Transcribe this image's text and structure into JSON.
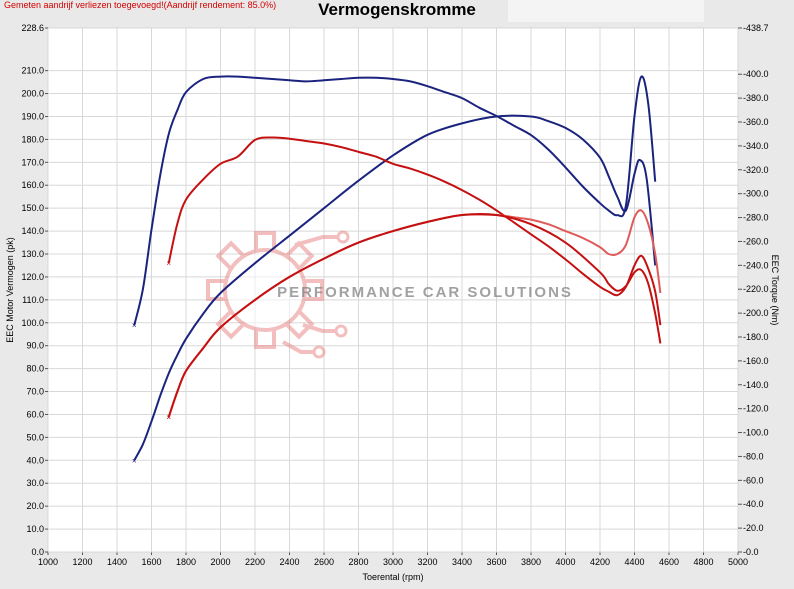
{
  "note": "Gemeten aandrijf verliezen toegevoegd!(Aandrijf rendement: 85.0%)",
  "colors": {
    "blue": "#1a237e",
    "red": "#c41010",
    "light_red": "#e05a5a",
    "note_red": "#d40000",
    "watermark": "#e88a8a"
  },
  "watermark": {
    "text": "PERFORMANCE CAR SOLUTIONS",
    "icon": "gear-logo-icon"
  },
  "chart_data": {
    "type": "line",
    "title": "Vermogenskromme",
    "xlabel": "Toerental (rpm)",
    "ylabel": "EEC Motor Vermogen (pk)",
    "y2label": "EEC Torque (Nm)",
    "xlim": [
      1000,
      5000
    ],
    "ylim": [
      0,
      228.6
    ],
    "y2lim": [
      0,
      438.7
    ],
    "x_ticks": [
      "1000",
      "1200",
      "1400",
      "1600",
      "1800",
      "2000",
      "2200",
      "2400",
      "2600",
      "2800",
      "3000",
      "3200",
      "3400",
      "3600",
      "3800",
      "4000",
      "4200",
      "4400",
      "4600",
      "4800",
      "5000"
    ],
    "y_ticks": [
      "228.6",
      "210.0",
      "200.0",
      "190.0",
      "180.0",
      "170.0",
      "160.0",
      "150.0",
      "140.0",
      "130.0",
      "120.0",
      "110.0",
      "100.0",
      "90.0",
      "80.0",
      "70.0",
      "60.0",
      "50.0",
      "40.0",
      "30.0",
      "20.0",
      "10.0",
      "0.0"
    ],
    "y2_ticks": [
      "438.7",
      "400.0",
      "380.0",
      "360.0",
      "340.0",
      "320.0",
      "300.0",
      "280.0",
      "260.0",
      "240.0",
      "220.0",
      "200.0",
      "180.0",
      "160.0",
      "140.0",
      "120.0",
      "100.0",
      "80.0",
      "60.0",
      "40.0",
      "20.0",
      "0.0"
    ],
    "grid": true,
    "series": [
      {
        "name": "",
        "axis": "y2",
        "color": "blue",
        "x": [
          1500,
          1550,
          1600,
          1650,
          1700,
          1750,
          1800,
          1900,
          2000,
          2100,
          2200,
          2300,
          2400,
          2500,
          2600,
          2700,
          2800,
          2900,
          3000,
          3100,
          3200,
          3300,
          3400,
          3500,
          3600,
          3700,
          3800,
          3900,
          4000,
          4100,
          4200,
          4250,
          4300,
          4350,
          4400,
          4440,
          4480,
          4520
        ],
        "values": [
          190,
          220,
          270,
          315,
          350,
          370,
          385,
          396,
          398,
          398,
          397,
          396,
          395,
          394,
          395,
          396,
          397,
          397,
          396,
          394,
          390,
          385,
          380,
          372,
          365,
          357,
          349,
          337,
          322,
          306,
          292,
          286,
          282,
          290,
          365,
          398,
          375,
          310
        ]
      },
      {
        "name": "",
        "axis": "y1",
        "color": "blue",
        "x": [
          1500,
          1550,
          1600,
          1650,
          1700,
          1750,
          1800,
          1900,
          2000,
          2200,
          2400,
          2600,
          2800,
          3000,
          3200,
          3400,
          3600,
          3800,
          3900,
          4000,
          4100,
          4200,
          4250,
          4300,
          4350,
          4400,
          4430,
          4470,
          4520
        ],
        "values": [
          40,
          47,
          57,
          68,
          78,
          86,
          93,
          104,
          113,
          126,
          138,
          150,
          162,
          173,
          182,
          187,
          190,
          190,
          188,
          185,
          180,
          172,
          164,
          155,
          149,
          165,
          171,
          163,
          125
        ]
      },
      {
        "name": "",
        "axis": "y2",
        "color": "red",
        "x": [
          1700,
          1750,
          1800,
          1900,
          2000,
          2100,
          2200,
          2300,
          2400,
          2500,
          2600,
          2700,
          2800,
          2900,
          3000,
          3100,
          3200,
          3300,
          3400,
          3500,
          3600,
          3700,
          3800,
          3900,
          4000,
          4100,
          4200,
          4250,
          4300,
          4350,
          4400,
          4440,
          4480,
          4520,
          4550
        ],
        "values": [
          242,
          275,
          295,
          312,
          325,
          331,
          345,
          347,
          346,
          344,
          342,
          339,
          335,
          331,
          325,
          321,
          316,
          310,
          303,
          295,
          286,
          276,
          266,
          256,
          245,
          233,
          222,
          218,
          215,
          222,
          240,
          248,
          237,
          218,
          190
        ]
      },
      {
        "name": "",
        "axis": "y1",
        "color": "light_red",
        "x": [
          1700,
          1750,
          1800,
          1900,
          2000,
          2200,
          2400,
          2600,
          2800,
          3000,
          3200,
          3400,
          3600,
          3700,
          3800,
          3900,
          4000,
          4100,
          4200,
          4250,
          4300,
          4350,
          4400,
          4440,
          4480,
          4520,
          4550
        ],
        "values": [
          59,
          70,
          79,
          89,
          98,
          110,
          120,
          128,
          135,
          140,
          144,
          147,
          147,
          146,
          145,
          143,
          140,
          137,
          133,
          130,
          130,
          134,
          146,
          149,
          143,
          130,
          113
        ]
      },
      {
        "name": "",
        "axis": "y1",
        "color": "red",
        "x": [
          1700,
          1750,
          1800,
          1900,
          2000,
          2200,
          2400,
          2600,
          2800,
          3000,
          3200,
          3400,
          3600,
          3800,
          4000,
          4200,
          4250,
          4300,
          4350,
          4400,
          4440,
          4480,
          4520,
          4550
        ],
        "values": [
          59,
          70,
          79,
          89,
          98,
          110,
          120,
          128,
          135,
          140,
          144,
          147,
          147,
          143,
          135,
          122,
          117,
          114,
          116,
          122,
          123,
          117,
          104,
          91
        ]
      }
    ]
  }
}
